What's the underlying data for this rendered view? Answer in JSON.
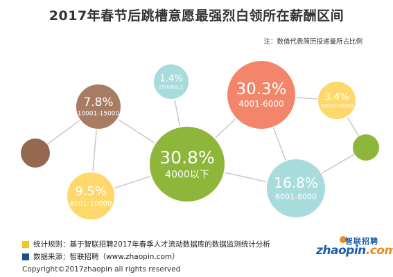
{
  "title": "2017年春节后跳槽意愿最强烈白领所在薪酬区间",
  "note": "注：数值代表简历投递量所占比例",
  "chart_data": {
    "type": "bubble",
    "unit": "%",
    "points": [
      {
        "category": "4000以下",
        "value": 30.8,
        "label": "30.8%",
        "color": "#8db63a"
      },
      {
        "category": "4001-6000",
        "value": 30.3,
        "label": "30.3%",
        "color": "#f3866a"
      },
      {
        "category": "6001-8000",
        "value": 16.8,
        "label": "16.8%",
        "color": "#a8dcdc"
      },
      {
        "category": "8001-10000",
        "value": 9.5,
        "label": "9.5%",
        "color": "#fed86a"
      },
      {
        "category": "10001-15000",
        "value": 7.8,
        "label": "7.8%",
        "color": "#a87c62"
      },
      {
        "category": "15000-25000",
        "value": 3.4,
        "label": "3.4%",
        "color": "#fed86a"
      },
      {
        "category": "25000以上",
        "value": 1.4,
        "label": "1.4%",
        "color": "#a8dcdc"
      }
    ],
    "decorative_colors": [
      "#95694f",
      "#8db63a"
    ],
    "connector_color": "#c8c8c8"
  },
  "footer": {
    "rule_prefix": "统计规则：",
    "rule_text": "基于智联招聘2017年春季人才流动数据库的数据监测统计分析",
    "rule_color": "#f5c518",
    "source_prefix": "数据来源：",
    "source_text": "智联招聘（www.zhaopin.com）",
    "source_color": "#1a4f8c",
    "copyright": "Copyright©2017zhaopin all rights reserved"
  },
  "logo": {
    "cn": "智联招聘",
    "en_main": "zhaopin.com",
    "en_accent": ".com"
  }
}
